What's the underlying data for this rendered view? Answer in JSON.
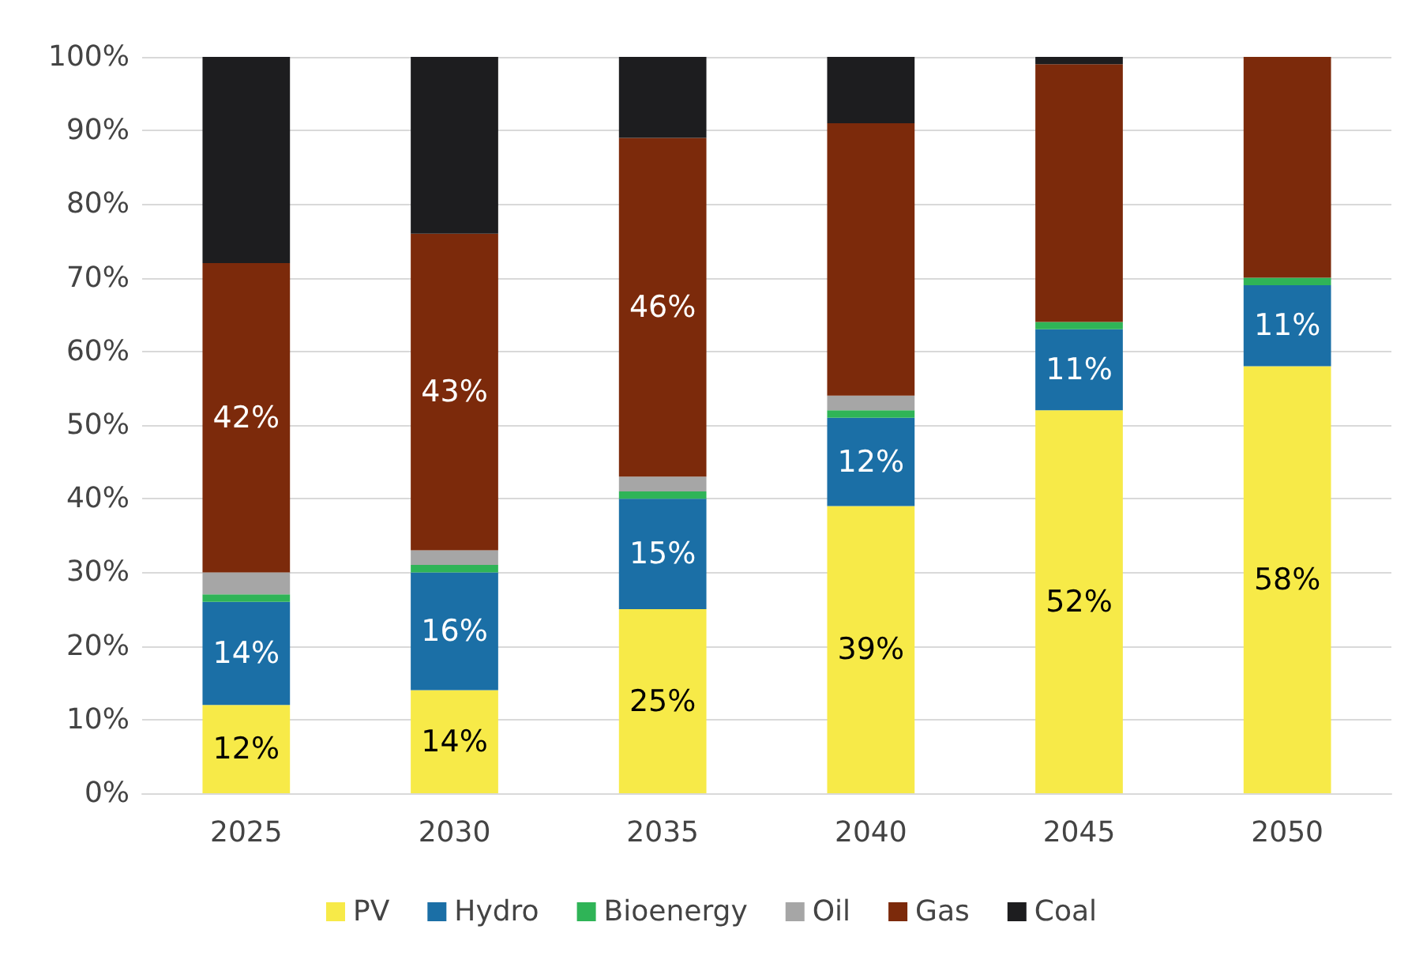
{
  "chart_data": {
    "type": "bar",
    "stacked": true,
    "categories": [
      "2025",
      "2030",
      "2035",
      "2040",
      "2045",
      "2050"
    ],
    "series": [
      {
        "name": "PV",
        "color": "#f7ea48",
        "values": [
          12,
          14,
          25,
          39,
          52,
          58
        ],
        "value_labels": [
          "12%",
          "14%",
          "25%",
          "39%",
          "52%",
          "58%"
        ]
      },
      {
        "name": "Hydro",
        "color": "#1b6fa6",
        "values": [
          14,
          16,
          15,
          12,
          11,
          11
        ],
        "value_labels": [
          "14%",
          "16%",
          "15%",
          "12%",
          "11%",
          "11%"
        ]
      },
      {
        "name": "Bioenergy",
        "color": "#2fb457",
        "values": [
          1,
          1,
          1,
          1,
          1,
          1
        ]
      },
      {
        "name": "Oil",
        "color": "#a6a6a6",
        "values": [
          3,
          2,
          2,
          2,
          0,
          0
        ]
      },
      {
        "name": "Gas",
        "color": "#7c2a0b",
        "values": [
          42,
          43,
          46,
          37,
          35,
          30
        ],
        "value_labels": [
          "42%",
          "43%",
          "46%",
          null,
          null,
          null
        ]
      },
      {
        "name": "Coal",
        "color": "#1d1d1f",
        "values": [
          28,
          24,
          11,
          9,
          1,
          0
        ]
      }
    ],
    "ylim": [
      0,
      100
    ],
    "yticks": [
      {
        "value": 0,
        "label": "0%"
      },
      {
        "value": 10,
        "label": "10%"
      },
      {
        "value": 20,
        "label": "20%"
      },
      {
        "value": 30,
        "label": "30%"
      },
      {
        "value": 40,
        "label": "40%"
      },
      {
        "value": 50,
        "label": "50%"
      },
      {
        "value": 60,
        "label": "60%"
      },
      {
        "value": 70,
        "label": "70%"
      },
      {
        "value": 80,
        "label": "80%"
      },
      {
        "value": 90,
        "label": "90%"
      },
      {
        "value": 100,
        "label": "100%"
      }
    ],
    "grid": "y",
    "legend": "bottom"
  }
}
